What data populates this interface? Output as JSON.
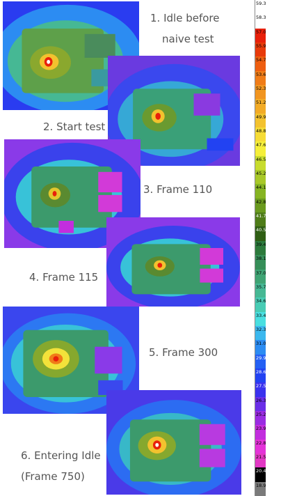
{
  "captions": [
    {
      "line1": "1.  Idle before",
      "line2": "naive test"
    },
    {
      "line1": "2. Start test"
    },
    {
      "line1": "3. Frame 110"
    },
    {
      "line1": "4. Frame 115"
    },
    {
      "line1": "5. Frame 300"
    },
    {
      "line1": "6. Entering Idle",
      "line2": "(Frame 750)"
    }
  ],
  "scale": {
    "ticks": [
      "59.3",
      "58.3",
      "57.0",
      "55.9",
      "54.7",
      "53.6",
      "52.3",
      "51.2",
      "49.9",
      "48.8",
      "47.6",
      "46.5",
      "45.2",
      "44.1",
      "42.8",
      "41.7",
      "40.5",
      "39.4",
      "38.1",
      "37.0",
      "35.7",
      "34.6",
      "33.4",
      "32.3",
      "31.0",
      "29.9",
      "28.6",
      "27.5",
      "26.3",
      "25.2",
      "23.9",
      "22.8",
      "21.5",
      "20.4",
      "18.9"
    ],
    "colors": [
      "#ffffff",
      "#ffffff",
      "#e8200a",
      "#e83a0a",
      "#ee5e10",
      "#f07c18",
      "#f19520",
      "#f2ab26",
      "#f3c22e",
      "#f6dc36",
      "#f5ef3a",
      "#c8dc2e",
      "#a8c828",
      "#86b422",
      "#6a9a1e",
      "#4e7c18",
      "#2f5e14",
      "#2c7a3c",
      "#368e58",
      "#3fa474",
      "#46b894",
      "#48ccb4",
      "#49dfe0",
      "#3bb8ee",
      "#2c8cf2",
      "#2460f4",
      "#2242f2",
      "#3a32ee",
      "#6a2ee8",
      "#9a2ce2",
      "#c22ede",
      "#e433d8",
      "#e238c4",
      "#000000",
      "#7a7a7a"
    ]
  },
  "colors": {
    "background_far": "#5a3ad8",
    "background_mid": "#3a58ec",
    "halo": "#36c6de",
    "board": "#3aa866",
    "hot_ring": "#f3e23a",
    "hot_core": "#e8200a"
  }
}
